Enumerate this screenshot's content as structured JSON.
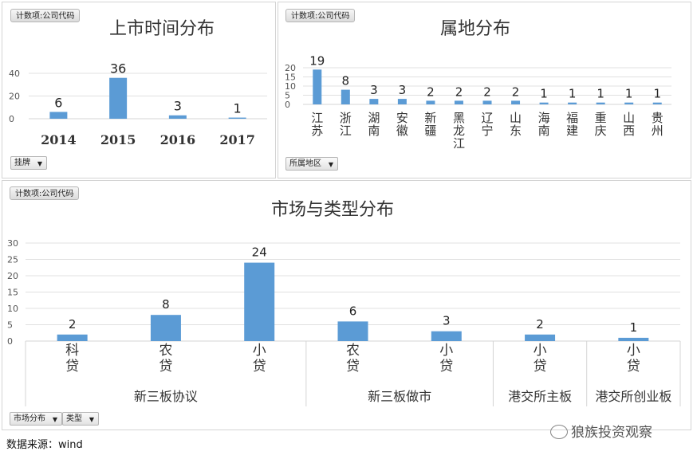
{
  "chart_data": [
    {
      "type": "bar",
      "title": "上市时间分布",
      "value_field": "计数项:公司代码",
      "filter": "挂牌",
      "categories": [
        "2014",
        "2015",
        "2016",
        "2017"
      ],
      "values": [
        6,
        36,
        3,
        1
      ],
      "ylim": [
        0,
        40
      ],
      "yticks": [
        0,
        20,
        40
      ],
      "color": "#5b9bd5",
      "grid": true,
      "legend": "none"
    },
    {
      "type": "bar",
      "title": "属地分布",
      "value_field": "计数项:公司代码",
      "filter": "所属地区",
      "categories": [
        "江苏",
        "浙江",
        "湖南",
        "安徽",
        "新疆",
        "黑龙江",
        "辽宁",
        "山东",
        "海南",
        "福建",
        "重庆",
        "山西",
        "贵州"
      ],
      "values": [
        19,
        8,
        3,
        3,
        2,
        2,
        2,
        2,
        1,
        1,
        1,
        1,
        1
      ],
      "ylim": [
        0,
        20
      ],
      "yticks": [
        0,
        5,
        10,
        15,
        20
      ],
      "color": "#5b9bd5",
      "grid": true,
      "legend": "none"
    },
    {
      "type": "bar",
      "title": "市场与类型分布",
      "value_field": "计数项:公司代码",
      "filters": [
        "市场分布",
        "类型"
      ],
      "categories": [
        "科贷",
        "农贷",
        "小贷",
        "农贷",
        "小贷",
        "小贷",
        "小贷"
      ],
      "groups": [
        {
          "name": "新三板协议",
          "count": 3
        },
        {
          "name": "新三板做市",
          "count": 2
        },
        {
          "name": "港交所主板",
          "count": 1
        },
        {
          "name": "港交所创业板",
          "count": 1
        }
      ],
      "values": [
        2,
        8,
        24,
        6,
        3,
        2,
        1
      ],
      "ylim": [
        0,
        30
      ],
      "yticks": [
        0,
        5,
        10,
        15,
        20,
        25,
        30
      ],
      "color": "#5b9bd5",
      "grid": true,
      "legend": "none"
    }
  ],
  "source": "数据来源：wind",
  "watermark": "狼族投资观察"
}
